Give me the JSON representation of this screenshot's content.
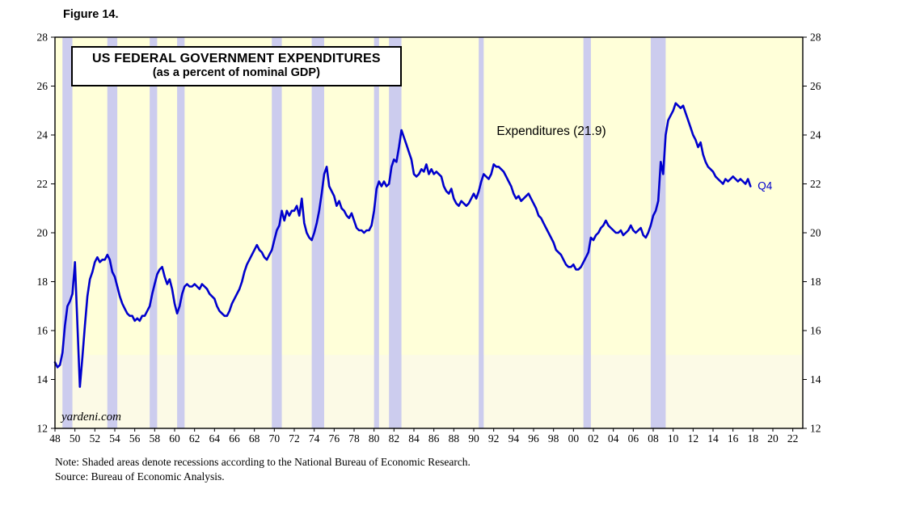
{
  "figure": {
    "caption": "Figure 14."
  },
  "chart_data": {
    "type": "line",
    "title_line1": "US FEDERAL GOVERNMENT EXPENDITURES",
    "title_line2": "(as a percent of nominal GDP)",
    "annotation": {
      "text": "Expenditures (21.9)",
      "x": 1992.3,
      "y": 24.0
    },
    "end_label": "Q4",
    "watermark": "yardeni.com",
    "x_range": [
      1948,
      2023
    ],
    "y_range": [
      12,
      28
    ],
    "x_ticks": [
      1948,
      1950,
      1952,
      1954,
      1956,
      1958,
      1960,
      1962,
      1964,
      1966,
      1968,
      1970,
      1972,
      1974,
      1976,
      1978,
      1980,
      1982,
      1984,
      1986,
      1988,
      1990,
      1992,
      1994,
      1996,
      1998,
      2000,
      2002,
      2004,
      2006,
      2008,
      2010,
      2012,
      2014,
      2016,
      2018,
      2020,
      2022
    ],
    "y_ticks": [
      12,
      14,
      16,
      18,
      20,
      22,
      24,
      26,
      28
    ],
    "grid": false,
    "legend_position": "none",
    "lower_band_max": 15,
    "recessions": [
      [
        1948.75,
        1949.75
      ],
      [
        1953.25,
        1954.25
      ],
      [
        1957.5,
        1958.25
      ],
      [
        1960.25,
        1961.0
      ],
      [
        1969.75,
        1970.75
      ],
      [
        1973.75,
        1975.0
      ],
      [
        1980.0,
        1980.5
      ],
      [
        1981.5,
        1982.75
      ],
      [
        1990.5,
        1991.0
      ],
      [
        2001.0,
        2001.75
      ],
      [
        2007.75,
        2009.25
      ]
    ],
    "colors": {
      "line": "#0000CD",
      "recession": "#CCCCEE",
      "plot_bg": "#FFFFD9",
      "plot_bg_lower": "#FCFAE6",
      "axis": "#000000",
      "end_label": "#0000CD"
    },
    "series": [
      {
        "name": "Expenditures",
        "start_year": 1948,
        "frequency": "quarterly",
        "last_point_label": "Q4",
        "last_value": 21.9,
        "values": [
          14.7,
          14.5,
          14.6,
          15.1,
          16.2,
          17.0,
          17.2,
          17.5,
          18.8,
          16.2,
          13.7,
          14.9,
          16.2,
          17.4,
          18.1,
          18.4,
          18.8,
          19.0,
          18.8,
          18.9,
          18.9,
          19.1,
          18.9,
          18.4,
          18.2,
          17.8,
          17.4,
          17.1,
          16.9,
          16.7,
          16.6,
          16.6,
          16.4,
          16.5,
          16.4,
          16.6,
          16.6,
          16.8,
          17.0,
          17.5,
          17.9,
          18.3,
          18.5,
          18.6,
          18.2,
          17.9,
          18.1,
          17.7,
          17.1,
          16.7,
          17.0,
          17.5,
          17.8,
          17.9,
          17.8,
          17.8,
          17.9,
          17.8,
          17.7,
          17.9,
          17.8,
          17.7,
          17.5,
          17.4,
          17.3,
          17.0,
          16.8,
          16.7,
          16.6,
          16.6,
          16.8,
          17.1,
          17.3,
          17.5,
          17.7,
          18.0,
          18.4,
          18.7,
          18.9,
          19.1,
          19.3,
          19.5,
          19.3,
          19.2,
          19.0,
          18.9,
          19.1,
          19.3,
          19.7,
          20.1,
          20.3,
          20.9,
          20.5,
          20.9,
          20.7,
          20.9,
          20.9,
          21.1,
          20.7,
          21.4,
          20.4,
          20.0,
          19.8,
          19.7,
          20.0,
          20.4,
          20.9,
          21.6,
          22.4,
          22.7,
          21.9,
          21.7,
          21.5,
          21.1,
          21.3,
          21.0,
          20.9,
          20.7,
          20.6,
          20.8,
          20.5,
          20.2,
          20.1,
          20.1,
          20.0,
          20.1,
          20.1,
          20.3,
          20.9,
          21.8,
          22.1,
          21.9,
          22.1,
          21.9,
          22.0,
          22.7,
          23.0,
          22.9,
          23.5,
          24.2,
          23.9,
          23.6,
          23.3,
          23.0,
          22.4,
          22.3,
          22.4,
          22.6,
          22.5,
          22.8,
          22.4,
          22.6,
          22.4,
          22.5,
          22.4,
          22.3,
          21.9,
          21.7,
          21.6,
          21.8,
          21.4,
          21.2,
          21.1,
          21.3,
          21.2,
          21.1,
          21.2,
          21.4,
          21.6,
          21.4,
          21.7,
          22.1,
          22.4,
          22.3,
          22.2,
          22.4,
          22.8,
          22.7,
          22.7,
          22.6,
          22.5,
          22.3,
          22.1,
          21.9,
          21.6,
          21.4,
          21.5,
          21.3,
          21.4,
          21.5,
          21.6,
          21.4,
          21.2,
          21.0,
          20.7,
          20.6,
          20.4,
          20.2,
          20.0,
          19.8,
          19.6,
          19.3,
          19.2,
          19.1,
          18.9,
          18.7,
          18.6,
          18.6,
          18.7,
          18.5,
          18.5,
          18.6,
          18.8,
          19.0,
          19.2,
          19.8,
          19.7,
          19.9,
          20.0,
          20.2,
          20.3,
          20.5,
          20.3,
          20.2,
          20.1,
          20.0,
          20.0,
          20.1,
          19.9,
          20.0,
          20.1,
          20.3,
          20.1,
          20.0,
          20.1,
          20.2,
          19.9,
          19.8,
          20.0,
          20.3,
          20.7,
          20.9,
          21.3,
          22.9,
          22.4,
          24.0,
          24.6,
          24.8,
          25.0,
          25.3,
          25.2,
          25.1,
          25.2,
          24.9,
          24.6,
          24.3,
          24.0,
          23.8,
          23.5,
          23.7,
          23.2,
          22.9,
          22.7,
          22.6,
          22.5,
          22.3,
          22.2,
          22.1,
          22.0,
          22.2,
          22.1,
          22.2,
          22.3,
          22.2,
          22.1,
          22.2,
          22.1,
          22.0,
          22.2,
          21.9
        ]
      }
    ]
  },
  "notes": {
    "line1": "Note: Shaded areas denote recessions according to the National Bureau of Economic Research.",
    "line2": "Source: Bureau of Economic Analysis."
  }
}
